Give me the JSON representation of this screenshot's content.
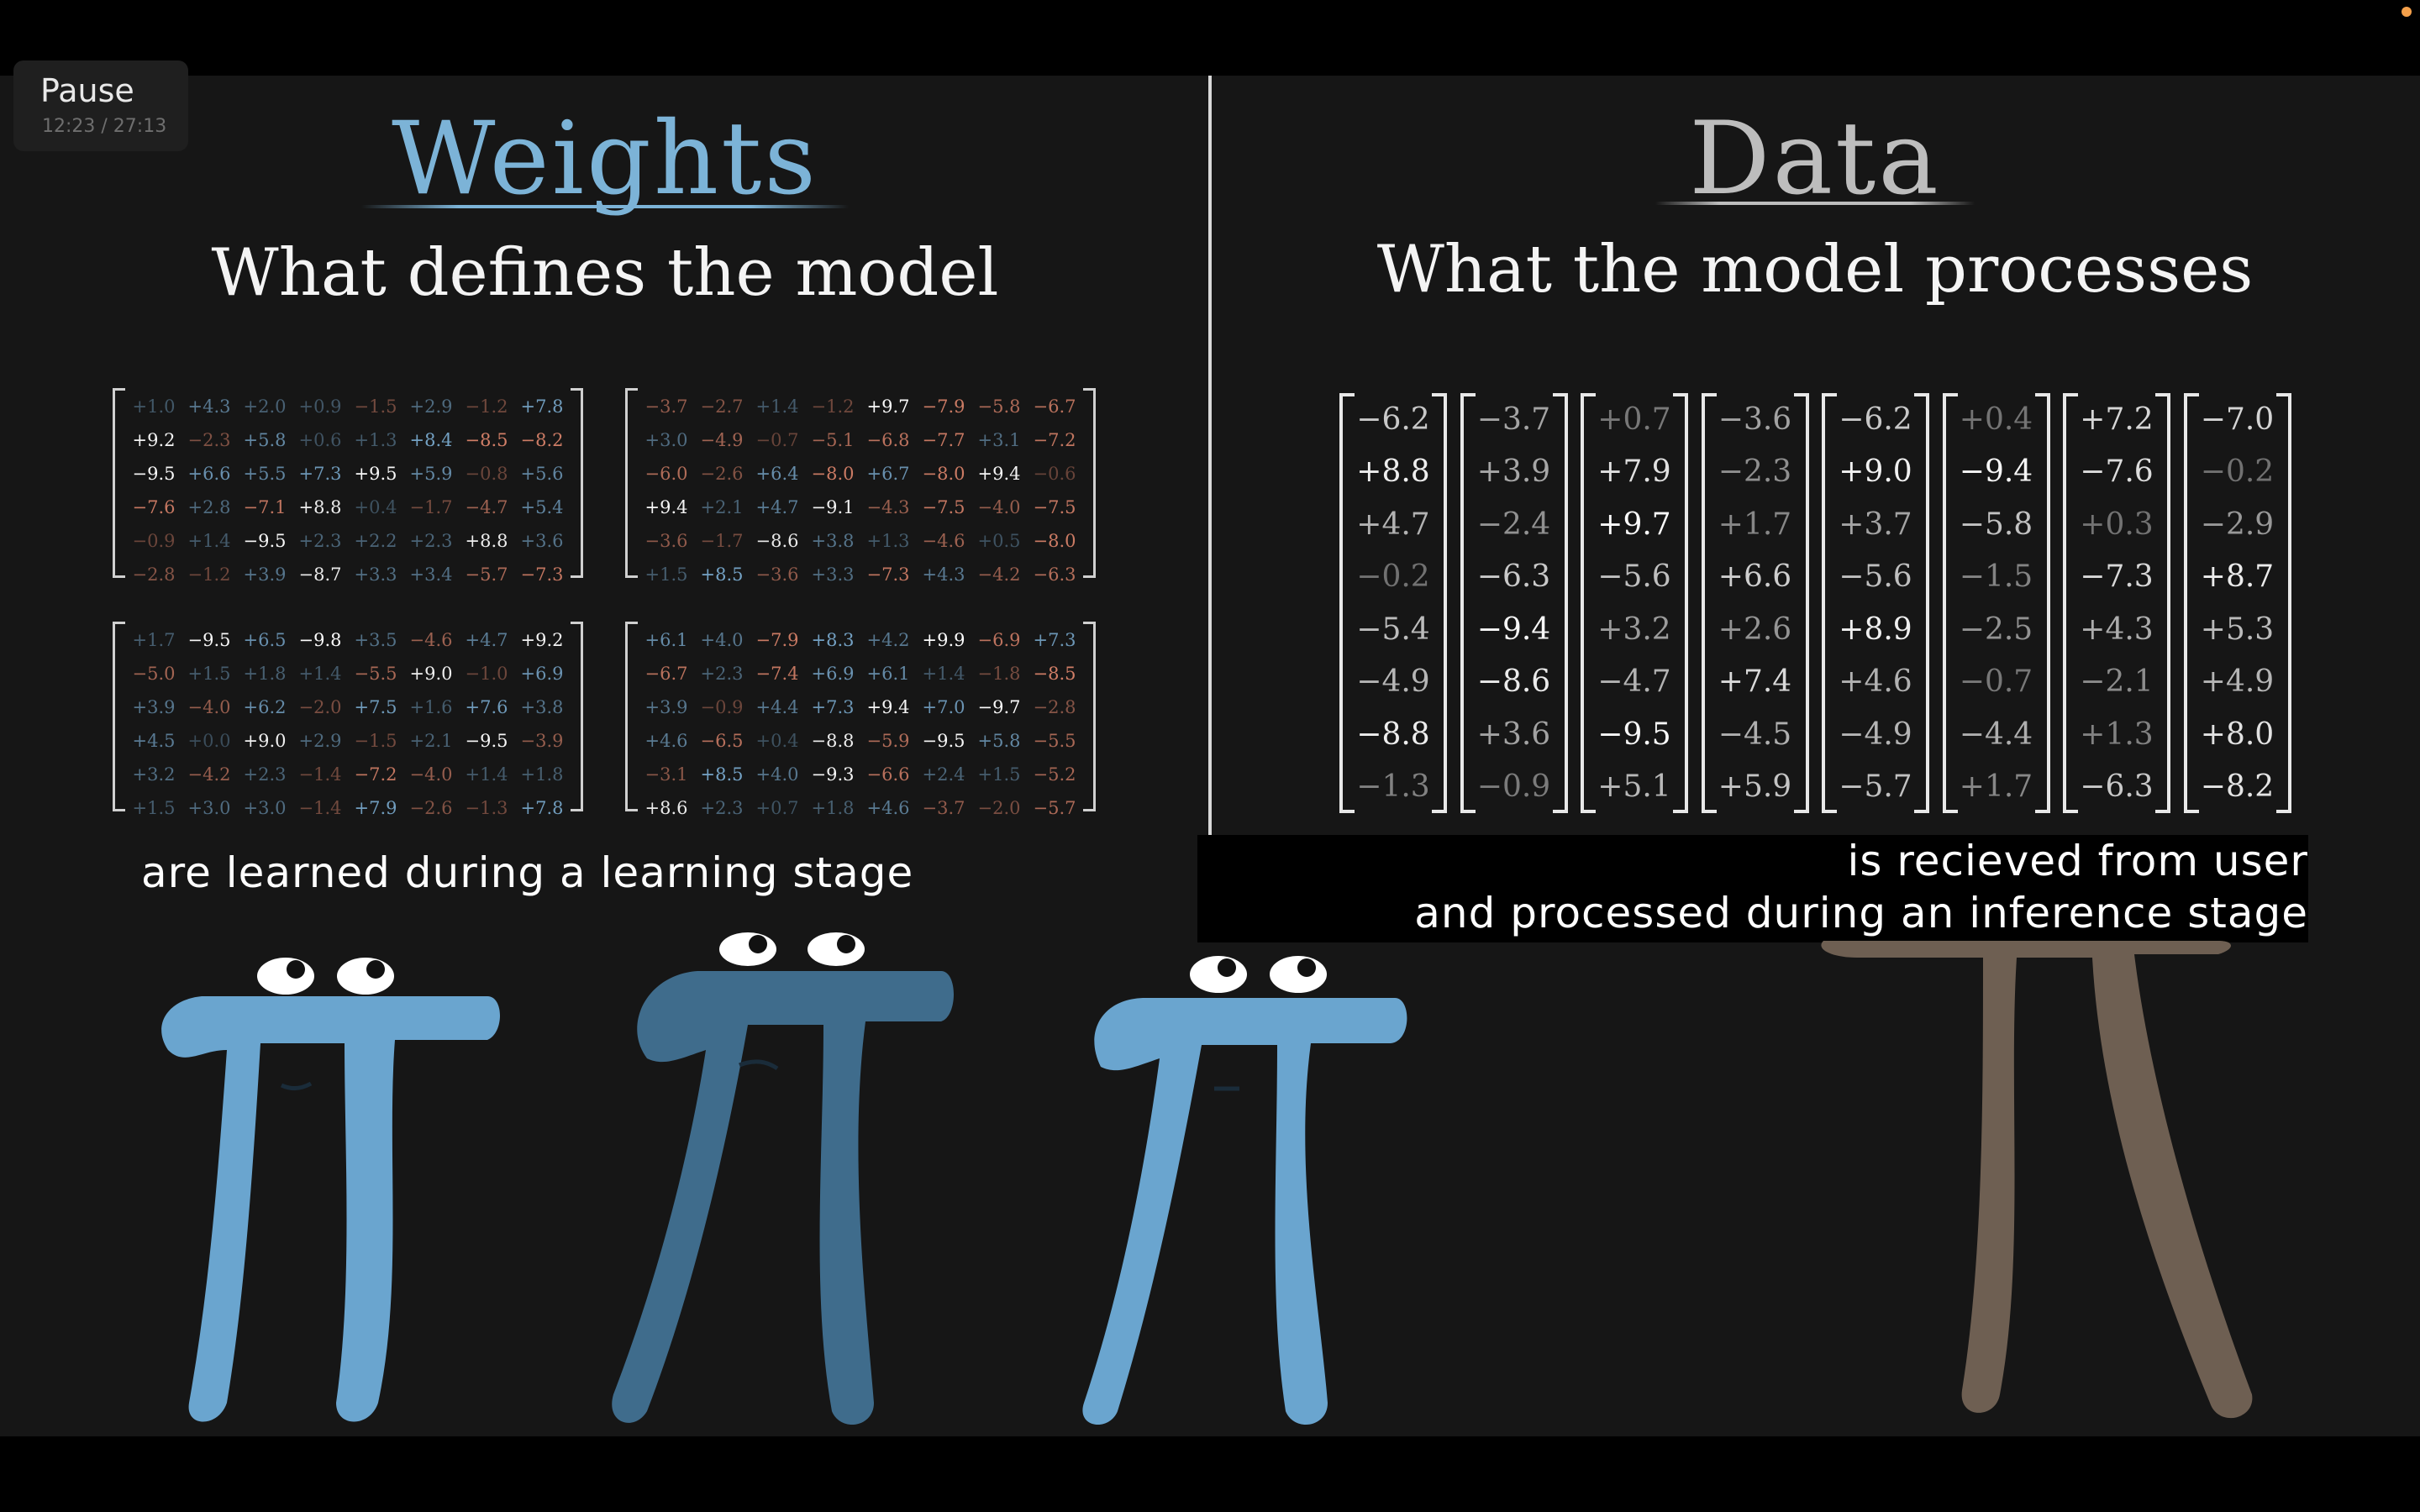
{
  "player": {
    "pause_label": "Pause",
    "time": "12:23 / 27:13"
  },
  "left": {
    "title": "Weights",
    "subtitle": "What defines the model",
    "caption": "are learned during a learning stage",
    "matrices": [
      [
        [
          "+1.0",
          "+4.3",
          "+2.0",
          "+0.9",
          "−1.5",
          "+2.9",
          "−1.2",
          "+7.8"
        ],
        [
          "+9.2",
          "−2.3",
          "+5.8",
          "+0.6",
          "+1.3",
          "+8.4",
          "−8.5",
          "−8.2"
        ],
        [
          "−9.5",
          "+6.6",
          "+5.5",
          "+7.3",
          "+9.5",
          "+5.9",
          "−0.8",
          "+5.6"
        ],
        [
          "−7.6",
          "+2.8",
          "−7.1",
          "+8.8",
          "+0.4",
          "−1.7",
          "−4.7",
          "+5.4"
        ],
        [
          "−0.9",
          "+1.4",
          "−9.5",
          "+2.3",
          "+2.2",
          "+2.3",
          "+8.8",
          "+3.6"
        ],
        [
          "−2.8",
          "−1.2",
          "+3.9",
          "−8.7",
          "+3.3",
          "+3.4",
          "−5.7",
          "−7.3"
        ]
      ],
      [
        [
          "−3.7",
          "−2.7",
          "+1.4",
          "−1.2",
          "+9.7",
          "−7.9",
          "−5.8",
          "−6.7"
        ],
        [
          "+3.0",
          "−4.9",
          "−0.7",
          "−5.1",
          "−6.8",
          "−7.7",
          "+3.1",
          "−7.2"
        ],
        [
          "−6.0",
          "−2.6",
          "+6.4",
          "−8.0",
          "+6.7",
          "−8.0",
          "+9.4",
          "−0.6"
        ],
        [
          "+9.4",
          "+2.1",
          "+4.7",
          "−9.1",
          "−4.3",
          "−7.5",
          "−4.0",
          "−7.5"
        ],
        [
          "−3.6",
          "−1.7",
          "−8.6",
          "+3.8",
          "+1.3",
          "−4.6",
          "+0.5",
          "−8.0"
        ],
        [
          "+1.5",
          "+8.5",
          "−3.6",
          "+3.3",
          "−7.3",
          "+4.3",
          "−4.2",
          "−6.3"
        ]
      ],
      [
        [
          "+1.7",
          "−9.5",
          "+6.5",
          "−9.8",
          "+3.5",
          "−4.6",
          "+4.7",
          "+9.2"
        ],
        [
          "−5.0",
          "+1.5",
          "+1.8",
          "+1.4",
          "−5.5",
          "+9.0",
          "−1.0",
          "+6.9"
        ],
        [
          "+3.9",
          "−4.0",
          "+6.2",
          "−2.0",
          "+7.5",
          "+1.6",
          "+7.6",
          "+3.8"
        ],
        [
          "+4.5",
          "+0.0",
          "+9.0",
          "+2.9",
          "−1.5",
          "+2.1",
          "−9.5",
          "−3.9"
        ],
        [
          "+3.2",
          "−4.2",
          "+2.3",
          "−1.4",
          "−7.2",
          "−4.0",
          "+1.4",
          "+1.8"
        ],
        [
          "+1.5",
          "+3.0",
          "+3.0",
          "−1.4",
          "+7.9",
          "−2.6",
          "−1.3",
          "+7.8"
        ]
      ],
      [
        [
          "+6.1",
          "+4.0",
          "−7.9",
          "+8.3",
          "+4.2",
          "+9.9",
          "−6.9",
          "+7.3"
        ],
        [
          "−6.7",
          "+2.3",
          "−7.4",
          "+6.9",
          "+6.1",
          "+1.4",
          "−1.8",
          "−8.5"
        ],
        [
          "+3.9",
          "−0.9",
          "+4.4",
          "+7.3",
          "+9.4",
          "+7.0",
          "−9.7",
          "−2.8"
        ],
        [
          "+4.6",
          "−6.5",
          "+0.4",
          "−8.8",
          "−5.9",
          "−9.5",
          "+5.8",
          "−5.5"
        ],
        [
          "−3.1",
          "+8.5",
          "+4.0",
          "−9.3",
          "−6.6",
          "+2.4",
          "+1.5",
          "−5.2"
        ],
        [
          "+8.6",
          "+2.3",
          "+0.7",
          "+1.8",
          "+4.6",
          "−3.7",
          "−2.0",
          "−5.7"
        ]
      ]
    ]
  },
  "right": {
    "title": "Data",
    "subtitle": "What the model processes",
    "caption_line1": "is recieved from user",
    "caption_line2": "and processed during an inference stage",
    "vectors": [
      [
        "−6.2",
        "+8.8",
        "+4.7",
        "−0.2",
        "−5.4",
        "−4.9",
        "−8.8",
        "−1.3"
      ],
      [
        "−3.7",
        "+3.9",
        "−2.4",
        "−6.3",
        "−9.4",
        "−8.6",
        "+3.6",
        "−0.9"
      ],
      [
        "+0.7",
        "+7.9",
        "+9.7",
        "−5.6",
        "+3.2",
        "−4.7",
        "−9.5",
        "+5.1"
      ],
      [
        "−3.6",
        "−2.3",
        "+1.7",
        "+6.6",
        "+2.6",
        "+7.4",
        "−4.5",
        "+5.9"
      ],
      [
        "−6.2",
        "+9.0",
        "+3.7",
        "−5.6",
        "+8.9",
        "+4.6",
        "−4.9",
        "−5.7"
      ],
      [
        "+0.4",
        "−9.4",
        "−5.8",
        "−1.5",
        "−2.5",
        "−0.7",
        "−4.4",
        "+1.7"
      ],
      [
        "+7.2",
        "−7.6",
        "+0.3",
        "−7.3",
        "+4.3",
        "−2.1",
        "+1.3",
        "−6.3"
      ],
      [
        "−7.0",
        "−0.2",
        "−2.9",
        "+8.7",
        "+5.3",
        "+4.9",
        "+8.0",
        "−8.2"
      ]
    ]
  },
  "colors": {
    "background": "#161616",
    "weights_title": "#7cb3d7",
    "positive": "#7fb2d8",
    "negative": "#e68a70",
    "data_title": "#bdbdbd",
    "pi_blue": "#6aa5cf",
    "pi_blue_dark": "#3f6c8c",
    "pi_brown": "#6e5f52"
  }
}
